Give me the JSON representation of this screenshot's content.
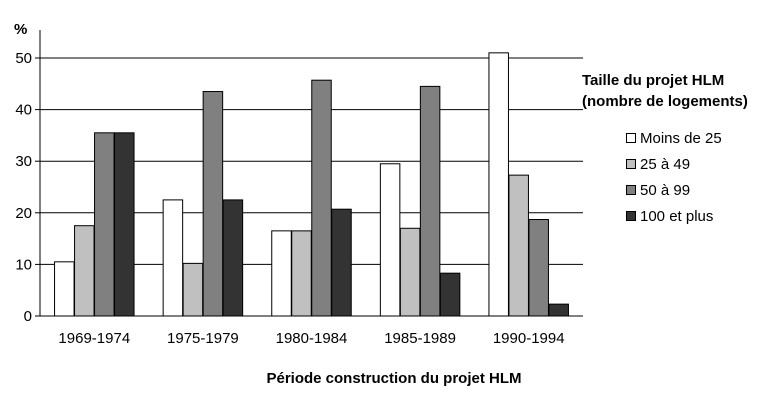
{
  "chart_data": {
    "type": "bar",
    "ylabel": "%",
    "xlabel": "Période construction du projet HLM",
    "categories": [
      "1969-1974",
      "1975-1979",
      "1980-1984",
      "1985-1989",
      "1990-1994"
    ],
    "ylim": [
      0,
      50
    ],
    "yticks": [
      0,
      10,
      20,
      30,
      40,
      50
    ],
    "grid": true,
    "legend_position": "right",
    "legend_title": [
      "Taille du projet HLM",
      "(nombre de logements)"
    ],
    "series": [
      {
        "name": "Moins de 25",
        "color": "#ffffff",
        "values": [
          10.5,
          22.5,
          16.5,
          29.5,
          51
        ]
      },
      {
        "name": "25 à 49",
        "color": "#c0c0c0",
        "values": [
          17.5,
          10.2,
          16.5,
          17,
          27.3
        ]
      },
      {
        "name": "50 à 99",
        "color": "#808080",
        "values": [
          35.5,
          43.5,
          45.7,
          44.5,
          18.7
        ]
      },
      {
        "name": "100 et plus",
        "color": "#333333",
        "values": [
          35.5,
          22.5,
          20.7,
          8.3,
          2.3
        ]
      }
    ]
  }
}
